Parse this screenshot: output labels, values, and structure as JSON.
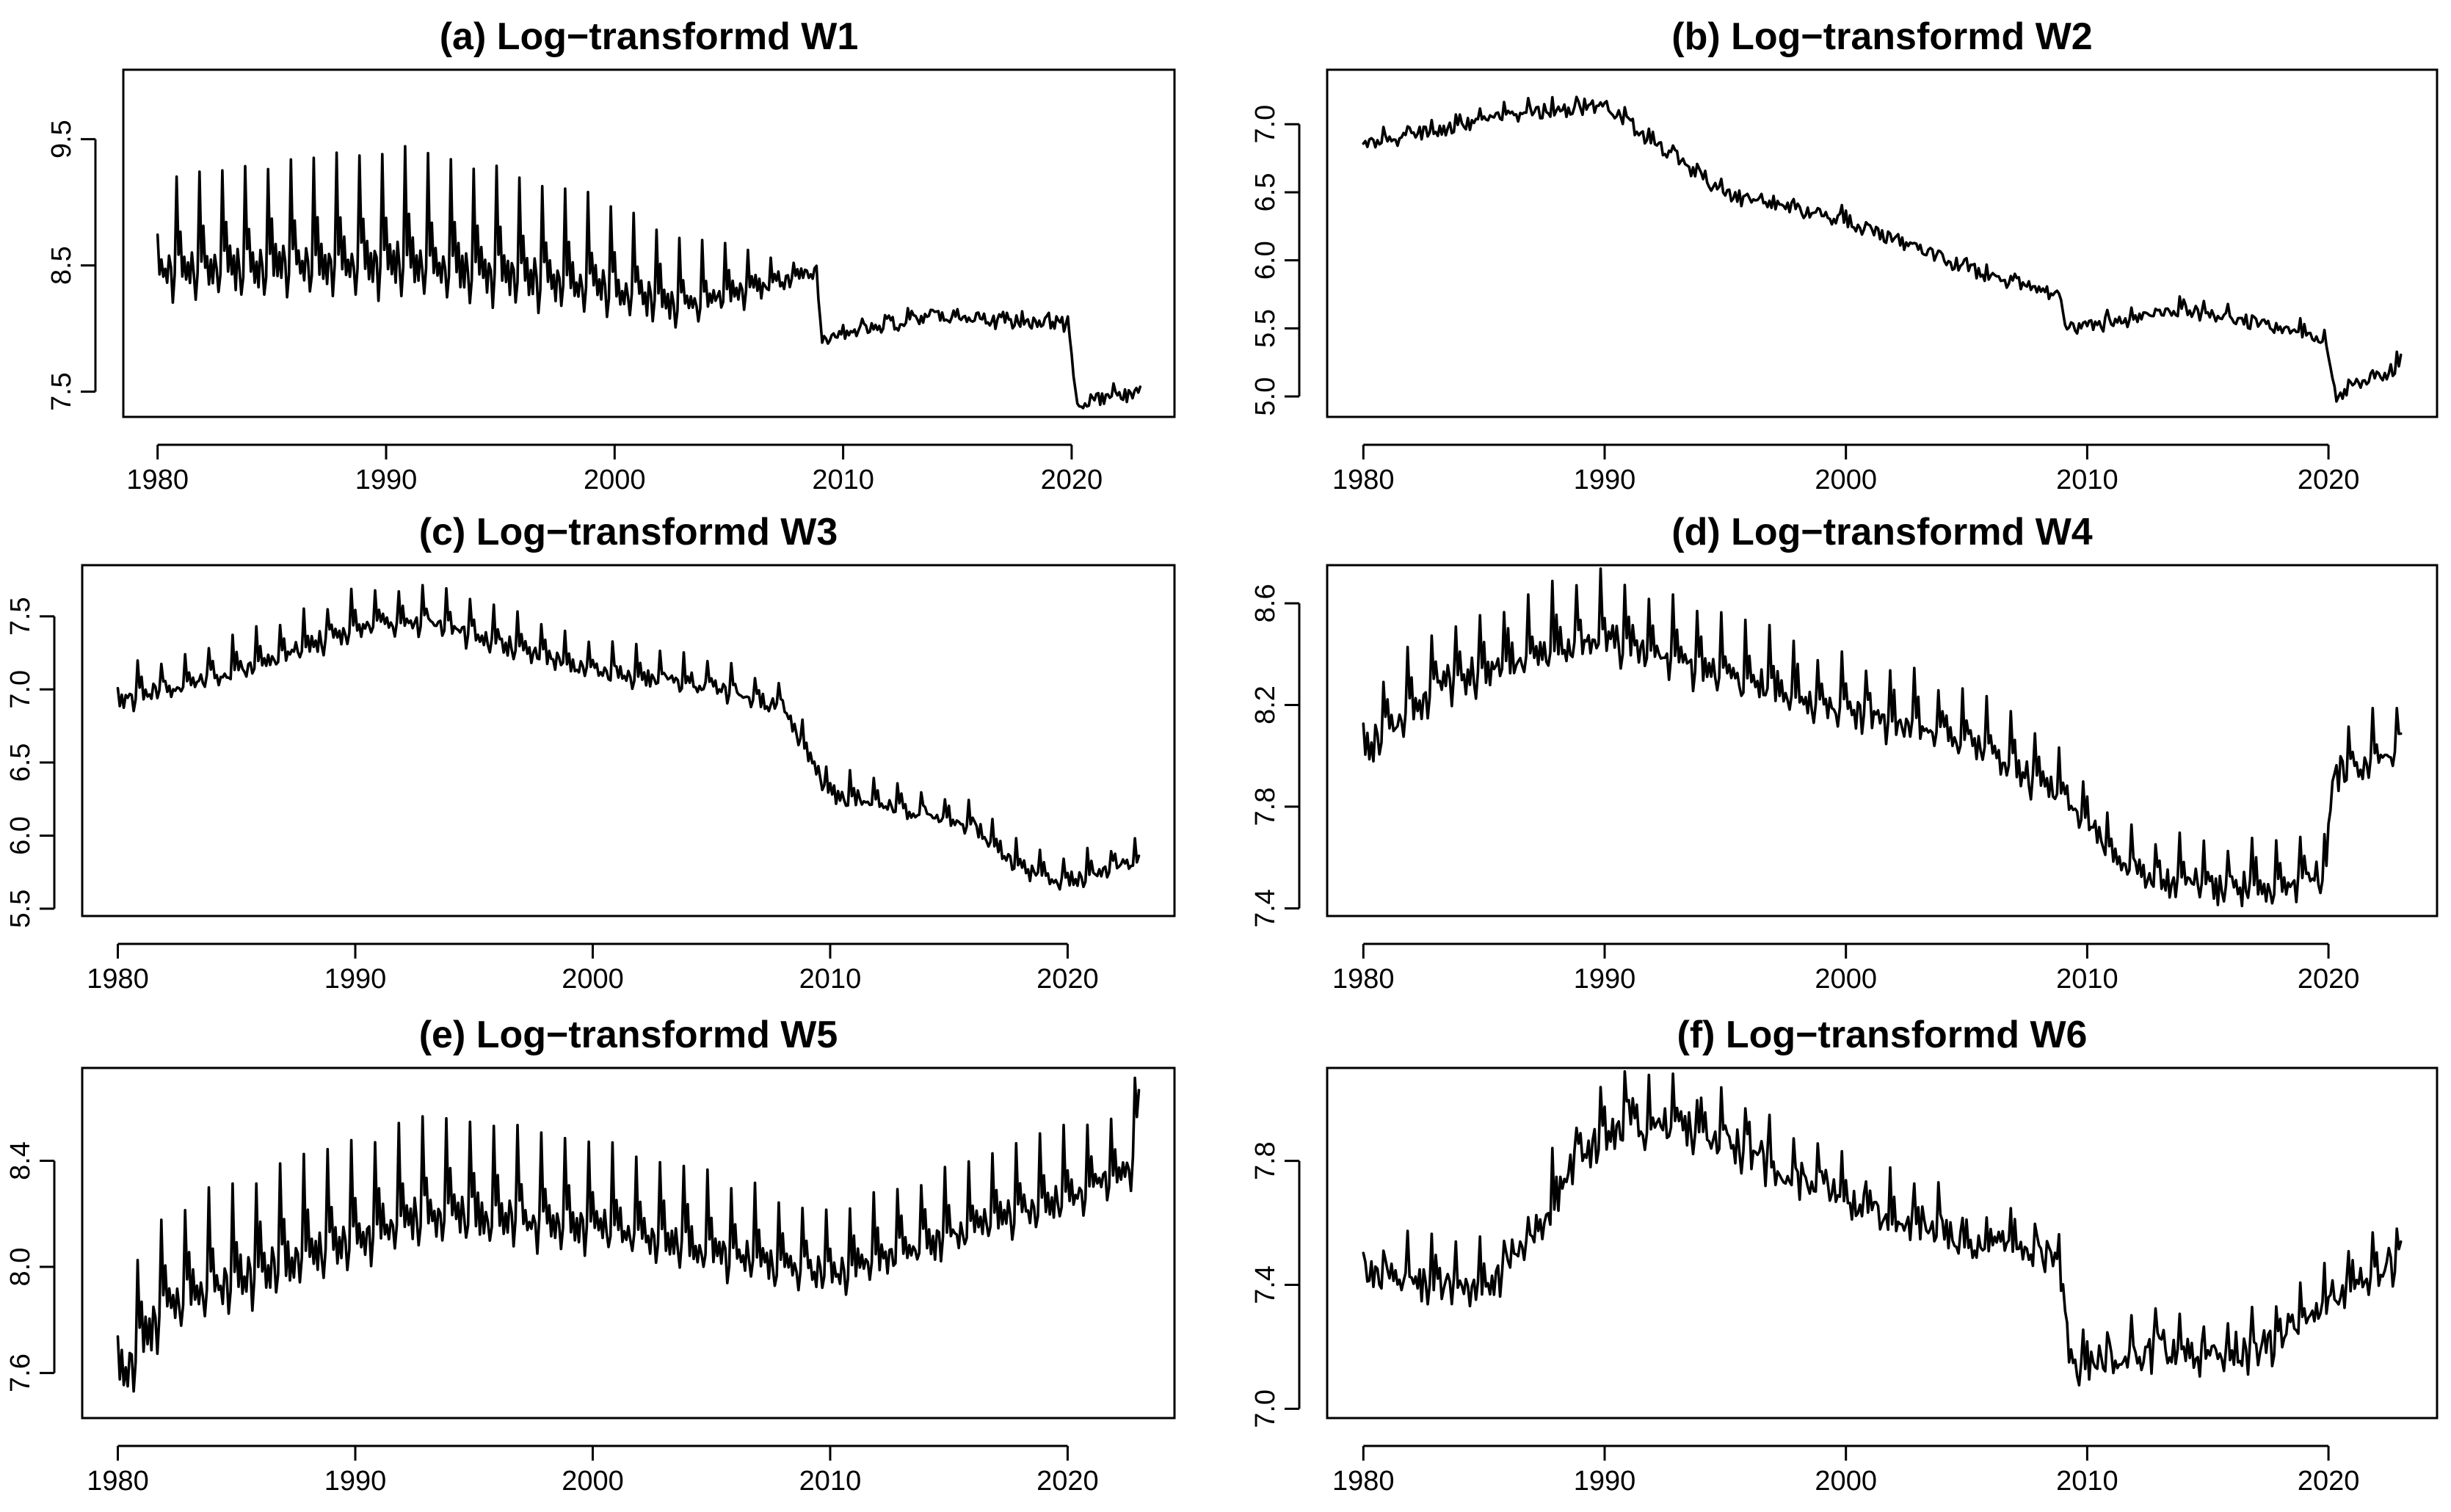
{
  "chart_data": [
    {
      "type": "line",
      "title": "(a) Log−transformd W1",
      "xlabel": "",
      "ylabel": "",
      "x_range": [
        1980,
        2023
      ],
      "xlim": [
        1978.5,
        2024.5
      ],
      "ylim": [
        7.3,
        10.05
      ],
      "xticks": [
        1980,
        1990,
        2000,
        2010,
        2020
      ],
      "yticks": [
        7.5,
        8.5,
        9.5
      ],
      "ytick_labels": [
        "7.5",
        "8.5",
        "9.5"
      ],
      "seasonal_amplitude": [
        [
          1980,
          0.85
        ],
        [
          1990,
          1.1
        ],
        [
          1996,
          1.0
        ],
        [
          2000,
          0.8
        ],
        [
          2003,
          0.6
        ],
        [
          2006,
          0.4
        ],
        [
          2008,
          0.1
        ],
        [
          2023,
          0.08
        ]
      ],
      "noise": 0.05,
      "trend": [
        [
          1980,
          8.55
        ],
        [
          1985,
          8.6
        ],
        [
          1990,
          8.65
        ],
        [
          1995,
          8.55
        ],
        [
          2000,
          8.4
        ],
        [
          2003,
          8.25
        ],
        [
          2006,
          8.35
        ],
        [
          2008.8,
          8.45
        ],
        [
          2009.1,
          7.9
        ],
        [
          2010,
          7.97
        ],
        [
          2014,
          8.1
        ],
        [
          2019.8,
          8.05
        ],
        [
          2020.3,
          7.35
        ],
        [
          2021,
          7.45
        ],
        [
          2023,
          7.5
        ]
      ]
    },
    {
      "type": "line",
      "title": "(b) Log−transformd W2",
      "xlabel": "",
      "ylabel": "",
      "x_range": [
        1980,
        2023
      ],
      "xlim": [
        1978.5,
        2024.5
      ],
      "ylim": [
        4.85,
        7.4
      ],
      "xticks": [
        1980,
        1990,
        2000,
        2010,
        2020
      ],
      "yticks": [
        5.0,
        5.5,
        6.0,
        6.5,
        7.0
      ],
      "ytick_labels": [
        "5.0",
        "5.5",
        "6.0",
        "6.5",
        "7.0"
      ],
      "seasonal_amplitude": [
        [
          1980,
          0.08
        ],
        [
          2023,
          0.08
        ]
      ],
      "noise": 0.05,
      "trend": [
        [
          1980,
          6.85
        ],
        [
          1985,
          7.05
        ],
        [
          1990,
          7.15
        ],
        [
          1993,
          6.75
        ],
        [
          1995,
          6.5
        ],
        [
          2000,
          6.3
        ],
        [
          2005,
          5.95
        ],
        [
          2008.8,
          5.75
        ],
        [
          2009.2,
          5.5
        ],
        [
          2014,
          5.65
        ],
        [
          2019.8,
          5.45
        ],
        [
          2020.3,
          5.0
        ],
        [
          2023,
          5.25
        ]
      ]
    },
    {
      "type": "line",
      "title": "(c) Log−transformd W3",
      "xlabel": "",
      "ylabel": "",
      "x_range": [
        1980,
        2023
      ],
      "xlim": [
        1978.5,
        2024.5
      ],
      "ylim": [
        5.45,
        7.85
      ],
      "xticks": [
        1980,
        1990,
        2000,
        2010,
        2020
      ],
      "yticks": [
        5.5,
        6.0,
        6.5,
        7.0,
        7.5
      ],
      "ytick_labels": [
        "5.5",
        "6.0",
        "6.5",
        "7.0",
        "7.5"
      ],
      "seasonal_amplitude": [
        [
          1980,
          0.25
        ],
        [
          1990,
          0.3
        ],
        [
          2000,
          0.25
        ],
        [
          2009,
          0.2
        ],
        [
          2023,
          0.2
        ]
      ],
      "noise": 0.04,
      "trend": [
        [
          1980,
          6.95
        ],
        [
          1985,
          7.15
        ],
        [
          1990,
          7.45
        ],
        [
          1993,
          7.5
        ],
        [
          1997,
          7.3
        ],
        [
          2000,
          7.15
        ],
        [
          2005,
          7.05
        ],
        [
          2008,
          6.9
        ],
        [
          2010,
          6.3
        ],
        [
          2013,
          6.2
        ],
        [
          2016,
          6.1
        ],
        [
          2018,
          5.8
        ],
        [
          2020,
          5.7
        ],
        [
          2023,
          5.85
        ]
      ]
    },
    {
      "type": "line",
      "title": "(d) Log−transformd W4",
      "xlabel": "",
      "ylabel": "",
      "x_range": [
        1980,
        2023
      ],
      "xlim": [
        1978.5,
        2024.5
      ],
      "ylim": [
        7.37,
        8.75
      ],
      "xticks": [
        1980,
        1990,
        2000,
        2010,
        2020
      ],
      "yticks": [
        7.4,
        7.8,
        8.2,
        8.6
      ],
      "ytick_labels": [
        "7.4",
        "7.8",
        "8.2",
        "8.6"
      ],
      "seasonal_amplitude": [
        [
          1980,
          0.3
        ],
        [
          1990,
          0.3
        ],
        [
          2000,
          0.25
        ],
        [
          2010,
          0.2
        ],
        [
          2023,
          0.25
        ]
      ],
      "noise": 0.04,
      "trend": [
        [
          1980,
          8.05
        ],
        [
          1983,
          8.3
        ],
        [
          1986,
          8.4
        ],
        [
          1990,
          8.5
        ],
        [
          1995,
          8.35
        ],
        [
          2000,
          8.2
        ],
        [
          2005,
          8.1
        ],
        [
          2009,
          7.85
        ],
        [
          2012,
          7.55
        ],
        [
          2016,
          7.5
        ],
        [
          2019.9,
          7.55
        ],
        [
          2020.2,
          7.95
        ],
        [
          2023,
          8.05
        ]
      ]
    },
    {
      "type": "line",
      "title": "(e) Log−transformd W5",
      "xlabel": "",
      "ylabel": "",
      "x_range": [
        1980,
        2023
      ],
      "xlim": [
        1978.5,
        2024.5
      ],
      "ylim": [
        7.43,
        8.75
      ],
      "xticks": [
        1980,
        1990,
        2000,
        2010,
        2020
      ],
      "yticks": [
        7.6,
        8.0,
        8.4
      ],
      "ytick_labels": [
        "7.6",
        "8.0",
        "8.4"
      ],
      "seasonal_amplitude": [
        [
          1980,
          0.45
        ],
        [
          1990,
          0.45
        ],
        [
          2000,
          0.4
        ],
        [
          2010,
          0.3
        ],
        [
          2023,
          0.3
        ]
      ],
      "noise": 0.03,
      "trend": [
        [
          1980,
          7.62
        ],
        [
          1982,
          7.9
        ],
        [
          1985,
          8.0
        ],
        [
          1990,
          8.15
        ],
        [
          1993,
          8.25
        ],
        [
          2000,
          8.2
        ],
        [
          2005,
          8.1
        ],
        [
          2010,
          8.0
        ],
        [
          2015,
          8.15
        ],
        [
          2020,
          8.3
        ],
        [
          2022.7,
          8.4
        ],
        [
          2023,
          8.6
        ]
      ]
    },
    {
      "type": "line",
      "title": "(f) Log−transformd W6",
      "xlabel": "",
      "ylabel": "",
      "x_range": [
        1980,
        2023
      ],
      "xlim": [
        1978.5,
        2024.5
      ],
      "ylim": [
        6.97,
        8.1
      ],
      "xticks": [
        1980,
        1990,
        2000,
        2010,
        2020
      ],
      "yticks": [
        7.0,
        7.4,
        7.8
      ],
      "ytick_labels": [
        "7.0",
        "7.4",
        "7.8"
      ],
      "seasonal_amplitude": [
        [
          1980,
          0.15
        ],
        [
          1990,
          0.18
        ],
        [
          2000,
          0.15
        ],
        [
          2010,
          0.12
        ],
        [
          2023,
          0.15
        ]
      ],
      "noise": 0.05,
      "trend": [
        [
          1980,
          7.45
        ],
        [
          1985,
          7.4
        ],
        [
          1987,
          7.55
        ],
        [
          1989,
          7.85
        ],
        [
          1991,
          7.95
        ],
        [
          1995,
          7.9
        ],
        [
          1998,
          7.75
        ],
        [
          2003,
          7.6
        ],
        [
          2008.8,
          7.5
        ],
        [
          2009.3,
          7.15
        ],
        [
          2013,
          7.2
        ],
        [
          2017,
          7.2
        ],
        [
          2020,
          7.35
        ],
        [
          2023,
          7.5
        ]
      ]
    }
  ]
}
